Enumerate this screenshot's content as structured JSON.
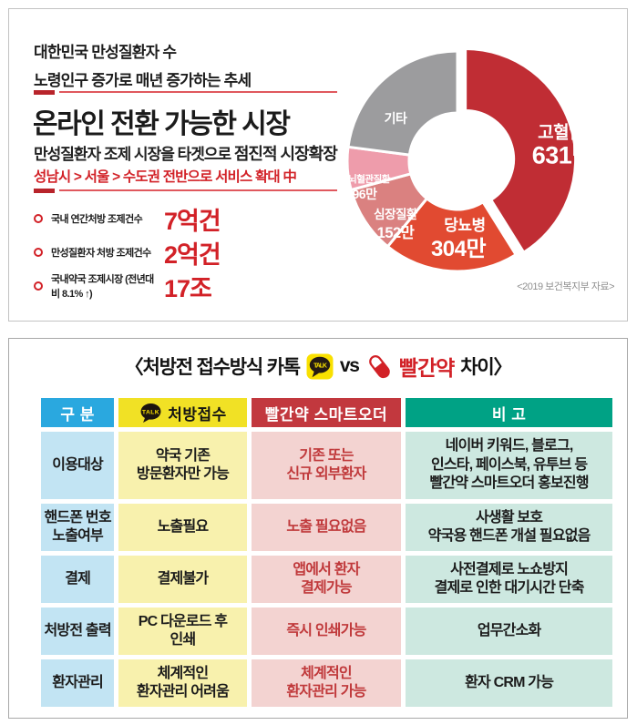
{
  "top_panel": {
    "heading_line1": "대한민국 만성질환자 수",
    "heading_line2": "노령인구 증가로 매년 증가하는 추세",
    "section_title": "온라인 전환 가능한 시장",
    "subtitle_normal": "만성질환자 조제 시장을 타겟으로 ",
    "subtitle_bold": "점진적 시장확장",
    "expansion_note": "성남시 > 서울 > 수도권 전반으로 서비스 확대 中",
    "stats": [
      {
        "label": "국내 연간처방 조제건수",
        "value": "7억건"
      },
      {
        "label": "만성질환자 처방 조제건수",
        "value": "2억건"
      },
      {
        "label": "국내약국 조제시장 (전년대비 8.1% ↑)",
        "value": "17조"
      }
    ]
  },
  "chart_data": {
    "type": "pie",
    "subtype": "donut",
    "title": "대한민국 만성질환자 수",
    "unit": "만 (x10,000 patients)",
    "source": "<2019 보건복지부 자료>",
    "legend_position": "on-slice",
    "segments": [
      {
        "label": "고혈압",
        "value": 631,
        "value_label": "631만",
        "color": "#c02d34",
        "exploded": true
      },
      {
        "label": "당뇨병",
        "value": 304,
        "value_label": "304만",
        "color": "#e14a31",
        "exploded": false
      },
      {
        "label": "심장질환",
        "value": 152,
        "value_label": "152만",
        "color": "#da8180",
        "exploded": false
      },
      {
        "label": "뇌혈관질환",
        "value": 96,
        "value_label": "96만",
        "color": "#ee9cab",
        "exploded": false
      },
      {
        "label": "기타",
        "value": 352,
        "value_label": "",
        "color": "#9c9c9e",
        "exploded": false,
        "estimated": true
      }
    ]
  },
  "bottom_panel": {
    "title": {
      "prefix": "〈처방전 접수방식 카톡",
      "vs": "vs",
      "brand": "빨간약",
      "suffix": "차이〉"
    },
    "talk_icon_text": "TALK",
    "table": {
      "headers": [
        {
          "label": "구 분"
        },
        {
          "label": "처방접수"
        },
        {
          "label": "빨간약 스마트오더"
        },
        {
          "label": "비 고"
        }
      ],
      "rows": [
        {
          "category": "이용대상",
          "kakao": "약국 기존\n방문환자만 가능",
          "redpill": "기존 또는\n신규 외부환자",
          "note": "네이버 키워드, 블로그,\n인스타, 페이스북, 유투브 등\n빨간약 스마트오더 홍보진행"
        },
        {
          "category": "핸드폰 번호\n노출여부",
          "kakao": "노출필요",
          "redpill": "노출 필요없음",
          "note": "사생활 보호\n약국용 핸드폰 개설 필요없음"
        },
        {
          "category": "결제",
          "kakao": "결제불가",
          "redpill": "앱에서 환자\n결제가능",
          "note": "사전결제로 노쇼방지\n결제로 인한 대기시간 단축"
        },
        {
          "category": "처방전 출력",
          "kakao": "PC 다운로드 후\n인쇄",
          "redpill": "즉시 인쇄가능",
          "note": "업무간소화"
        },
        {
          "category": "환자관리",
          "kakao": "체계적인\n환자관리 어려움",
          "redpill": "체계적인\n환자관리 가능",
          "note": "환자 CRM 가능"
        }
      ]
    }
  },
  "colors": {
    "accent_red": "#d22127",
    "header_blue": "#2aa8df",
    "header_yellow": "#f1e125",
    "header_red": "#c2383e",
    "header_teal": "#00a285",
    "cell_blue": "#c2e4f3",
    "cell_yellow": "#f8f1ad",
    "cell_pink": "#f3d3d1",
    "cell_mint": "#cde8e0"
  }
}
